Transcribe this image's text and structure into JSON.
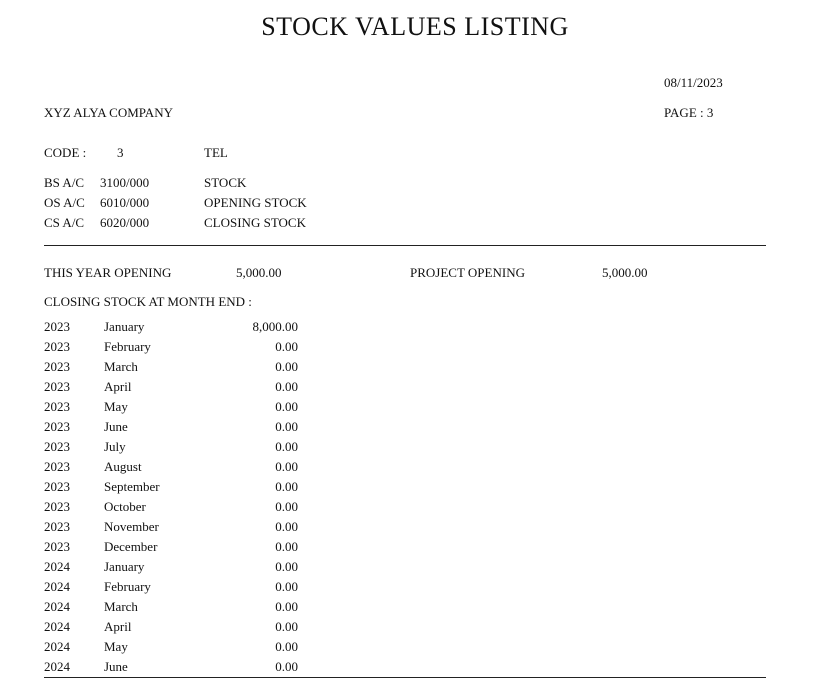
{
  "report": {
    "title": "STOCK VALUES LISTING",
    "date": "08/11/2023",
    "page": "PAGE : 3",
    "company": "XYZ ALYA COMPANY"
  },
  "code": {
    "label": "CODE :",
    "value": "3",
    "name": "TEL"
  },
  "accounts": [
    {
      "label": "BS A/C",
      "code": "3100/000",
      "desc": "STOCK"
    },
    {
      "label": "OS A/C",
      "code": "6010/000",
      "desc": "OPENING STOCK"
    },
    {
      "label": "CS A/C",
      "code": "6020/000",
      "desc": "CLOSING STOCK"
    }
  ],
  "summary": {
    "this_year_label": "THIS YEAR OPENING",
    "this_year_value": "5,000.00",
    "project_label": "PROJECT OPENING",
    "project_value": "5,000.00"
  },
  "closing_header": "CLOSING STOCK AT MONTH END :",
  "months": [
    {
      "year": "2023",
      "month": "January",
      "value": "8,000.00"
    },
    {
      "year": "2023",
      "month": "February",
      "value": "0.00"
    },
    {
      "year": "2023",
      "month": "March",
      "value": "0.00"
    },
    {
      "year": "2023",
      "month": "April",
      "value": "0.00"
    },
    {
      "year": "2023",
      "month": "May",
      "value": "0.00"
    },
    {
      "year": "2023",
      "month": "June",
      "value": "0.00"
    },
    {
      "year": "2023",
      "month": "July",
      "value": "0.00"
    },
    {
      "year": "2023",
      "month": "August",
      "value": "0.00"
    },
    {
      "year": "2023",
      "month": "September",
      "value": "0.00"
    },
    {
      "year": "2023",
      "month": "October",
      "value": "0.00"
    },
    {
      "year": "2023",
      "month": "November",
      "value": "0.00"
    },
    {
      "year": "2023",
      "month": "December",
      "value": "0.00"
    },
    {
      "year": "2024",
      "month": "January",
      "value": "0.00"
    },
    {
      "year": "2024",
      "month": "February",
      "value": "0.00"
    },
    {
      "year": "2024",
      "month": "March",
      "value": "0.00"
    },
    {
      "year": "2024",
      "month": "April",
      "value": "0.00"
    },
    {
      "year": "2024",
      "month": "May",
      "value": "0.00"
    },
    {
      "year": "2024",
      "month": "June",
      "value": "0.00"
    }
  ]
}
